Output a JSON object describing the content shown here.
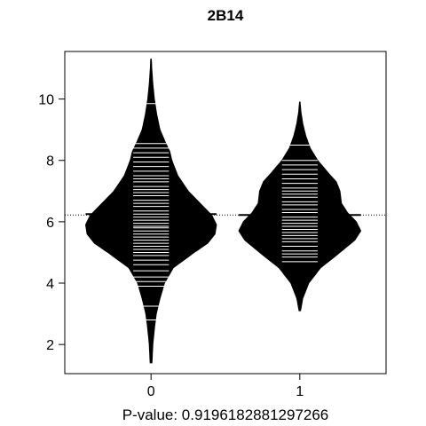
{
  "chart_data": {
    "type": "beanplot",
    "title": "2B14",
    "subtitle_below_axis": "P-value: 0.9196182881297266",
    "x_tick_labels": [
      "0",
      "1"
    ],
    "y_ticks": [
      2,
      4,
      6,
      8,
      10
    ],
    "ylim": [
      1.05,
      11.55
    ],
    "xlim": [
      -0.58,
      1.58
    ],
    "overall_mean": 6.22,
    "fill_color": "#000000",
    "line_color": "#ffffff",
    "series": [
      {
        "name": "0",
        "x": 0,
        "mean": 6.25,
        "max_half_width": 0.44,
        "density": [
          [
            1.4,
            0.006
          ],
          [
            2.0,
            0.012
          ],
          [
            2.5,
            0.022
          ],
          [
            3.0,
            0.035
          ],
          [
            3.5,
            0.06
          ],
          [
            4.0,
            0.09
          ],
          [
            4.5,
            0.15
          ],
          [
            5.0,
            0.29
          ],
          [
            5.3,
            0.38
          ],
          [
            5.6,
            0.43
          ],
          [
            5.9,
            0.44
          ],
          [
            6.2,
            0.41
          ],
          [
            6.6,
            0.33
          ],
          [
            7.0,
            0.25
          ],
          [
            7.5,
            0.18
          ],
          [
            8.0,
            0.14
          ],
          [
            8.3,
            0.125
          ],
          [
            8.6,
            0.095
          ],
          [
            9.0,
            0.06
          ],
          [
            9.5,
            0.038
          ],
          [
            10.0,
            0.022
          ],
          [
            10.5,
            0.012
          ],
          [
            11.0,
            0.005
          ],
          [
            11.3,
            0.002
          ]
        ],
        "points": [
          2.8,
          3.25,
          3.9,
          4.05,
          4.2,
          4.4,
          4.6,
          4.75,
          4.9,
          5.0,
          5.1,
          5.2,
          5.3,
          5.4,
          5.5,
          5.6,
          5.7,
          5.8,
          5.85,
          5.95,
          6.05,
          6.15,
          6.25,
          6.35,
          6.5,
          6.6,
          6.7,
          6.85,
          6.95,
          7.05,
          7.15,
          7.3,
          7.4,
          7.5,
          7.65,
          7.8,
          7.95,
          8.1,
          8.25,
          8.4,
          8.55,
          9.85
        ]
      },
      {
        "name": "1",
        "x": 1,
        "mean": 6.22,
        "max_half_width": 0.41,
        "density": [
          [
            3.1,
            0.005
          ],
          [
            3.5,
            0.02
          ],
          [
            4.0,
            0.06
          ],
          [
            4.5,
            0.14
          ],
          [
            5.0,
            0.27
          ],
          [
            5.4,
            0.37
          ],
          [
            5.7,
            0.41
          ],
          [
            6.0,
            0.38
          ],
          [
            6.3,
            0.32
          ],
          [
            6.6,
            0.28
          ],
          [
            7.0,
            0.27
          ],
          [
            7.3,
            0.245
          ],
          [
            7.6,
            0.19
          ],
          [
            8.0,
            0.12
          ],
          [
            8.4,
            0.07
          ],
          [
            8.8,
            0.04
          ],
          [
            9.2,
            0.02
          ],
          [
            9.6,
            0.007
          ],
          [
            9.9,
            0.002
          ]
        ],
        "points": [
          4.7,
          4.85,
          4.95,
          5.05,
          5.2,
          5.35,
          5.45,
          5.55,
          5.65,
          5.75,
          5.85,
          5.95,
          6.05,
          6.15,
          6.3,
          6.4,
          6.55,
          6.65,
          6.8,
          6.9,
          7.0,
          7.1,
          7.25,
          7.4,
          7.55,
          7.7,
          7.85,
          8.0,
          8.5
        ]
      }
    ]
  }
}
